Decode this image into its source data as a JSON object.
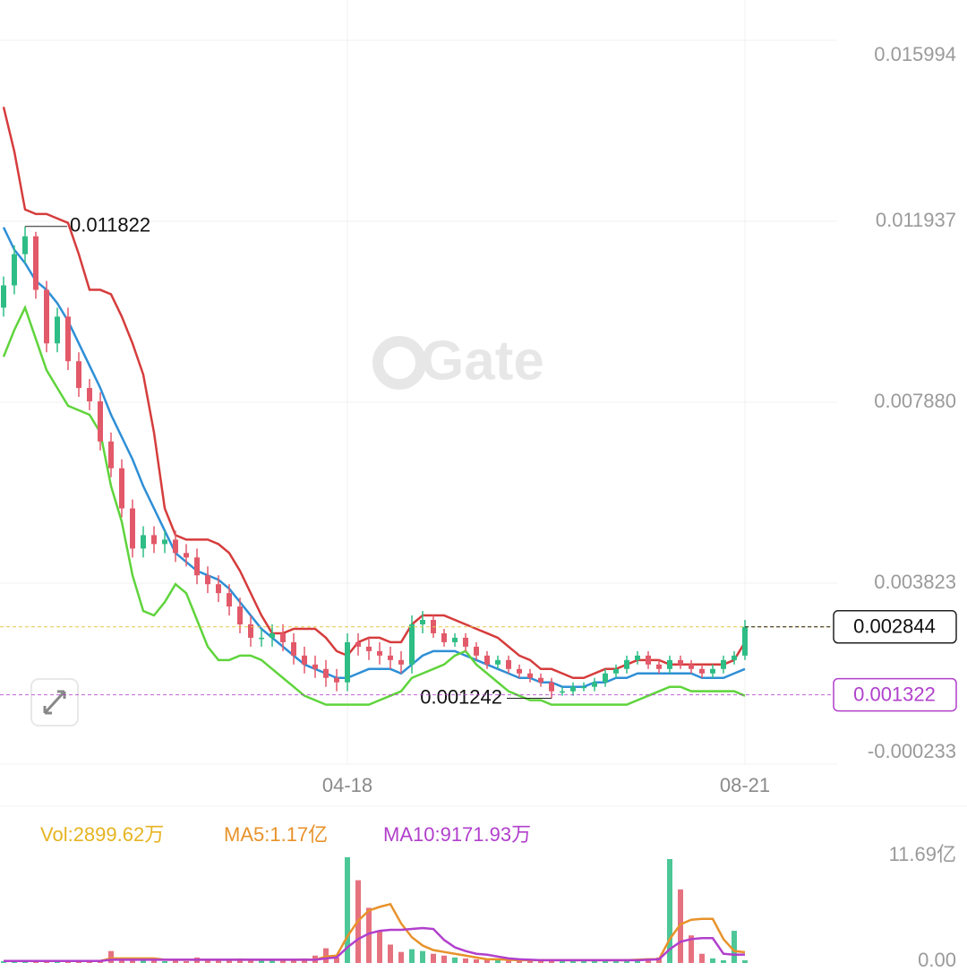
{
  "chart_data": {
    "type": "candlestick",
    "watermark": "Gate",
    "ylim": [
      -0.000233,
      0.015994
    ],
    "yticks": [
      0.015994,
      0.011937,
      {
        "value": 0.00788,
        "label": "0.007880"
      },
      0.003823,
      -0.000233
    ],
    "xticks": [
      {
        "value": 32,
        "label": "04-18"
      },
      {
        "value": 69,
        "label": "08-21"
      }
    ],
    "grid": true,
    "colors": {
      "up": "#2ebd85",
      "down": "#e2596a"
    },
    "candles": {
      "open": [
        0.01,
        0.0105,
        0.0112,
        0.0116,
        0.0104,
        0.0092,
        0.0098,
        0.0088,
        0.0082,
        0.0079,
        0.007,
        0.0064,
        0.0055,
        0.0046,
        0.0049,
        0.0047,
        0.0048,
        0.0045,
        0.0044,
        0.004,
        0.0038,
        0.0036,
        0.0033,
        0.0029,
        0.0026,
        0.0026,
        0.0027,
        0.0025,
        0.0022,
        0.002,
        0.0019,
        0.0017,
        0.0016,
        0.0025,
        0.0024,
        0.0023,
        0.0022,
        0.0021,
        0.002,
        0.0029,
        0.003,
        0.0027,
        0.0025,
        0.0026,
        0.0024,
        0.0022,
        0.002,
        0.0021,
        0.0019,
        0.0018,
        0.0017,
        0.0016,
        0.0014,
        0.0014,
        0.0015,
        0.0015,
        0.0016,
        0.0018,
        0.0019,
        0.0021,
        0.0022,
        0.002,
        0.0019,
        0.0021,
        0.002,
        0.0019,
        0.0018,
        0.0019,
        0.0021,
        0.0022
      ],
      "high": [
        0.0107,
        0.0114,
        0.011822,
        0.0117,
        0.0106,
        0.01,
        0.01,
        0.009,
        0.0084,
        0.0081,
        0.0072,
        0.0066,
        0.0057,
        0.0051,
        0.0051,
        0.005,
        0.005,
        0.0047,
        0.0046,
        0.0042,
        0.004,
        0.0038,
        0.0035,
        0.0031,
        0.0028,
        0.0029,
        0.0029,
        0.0027,
        0.0024,
        0.0022,
        0.0021,
        0.0019,
        0.0027,
        0.0027,
        0.0026,
        0.0025,
        0.0024,
        0.0023,
        0.0031,
        0.0032,
        0.0031,
        0.0028,
        0.0027,
        0.0027,
        0.0025,
        0.0023,
        0.0022,
        0.0022,
        0.002,
        0.0019,
        0.0018,
        0.0017,
        0.0015,
        0.0016,
        0.0016,
        0.0017,
        0.0019,
        0.002,
        0.0022,
        0.0023,
        0.0023,
        0.0021,
        0.0022,
        0.0022,
        0.0021,
        0.002,
        0.002,
        0.0022,
        0.0023,
        0.003
      ],
      "low": [
        0.0098,
        0.0103,
        0.011,
        0.0102,
        0.009,
        0.009,
        0.0086,
        0.008,
        0.0077,
        0.0068,
        0.0062,
        0.0053,
        0.0044,
        0.0044,
        0.0045,
        0.0045,
        0.0043,
        0.0042,
        0.0038,
        0.0036,
        0.0034,
        0.0031,
        0.0027,
        0.0024,
        0.0024,
        0.0024,
        0.0023,
        0.002,
        0.0018,
        0.0017,
        0.0015,
        0.0014,
        0.0014,
        0.0022,
        0.0021,
        0.002,
        0.0019,
        0.0018,
        0.0018,
        0.0027,
        0.0026,
        0.0024,
        0.0024,
        0.0023,
        0.0021,
        0.0019,
        0.0019,
        0.0018,
        0.0017,
        0.0016,
        0.0015,
        0.001242,
        0.0013,
        0.0013,
        0.0014,
        0.0014,
        0.0015,
        0.0017,
        0.0018,
        0.002,
        0.0019,
        0.0018,
        0.0018,
        0.0019,
        0.0018,
        0.0017,
        0.0017,
        0.0018,
        0.002,
        0.0021
      ],
      "close": [
        0.0105,
        0.0112,
        0.0116,
        0.0104,
        0.0092,
        0.0098,
        0.0088,
        0.0082,
        0.0079,
        0.007,
        0.0064,
        0.0055,
        0.0046,
        0.0049,
        0.0047,
        0.0048,
        0.0045,
        0.0044,
        0.004,
        0.0038,
        0.0036,
        0.0033,
        0.0029,
        0.0026,
        0.0026,
        0.0027,
        0.0025,
        0.0022,
        0.002,
        0.0019,
        0.0017,
        0.0016,
        0.0025,
        0.0024,
        0.0023,
        0.0022,
        0.0021,
        0.002,
        0.0029,
        0.003,
        0.0027,
        0.0025,
        0.0026,
        0.0024,
        0.0022,
        0.002,
        0.0021,
        0.0019,
        0.0018,
        0.0017,
        0.0016,
        0.0014,
        0.0014,
        0.0015,
        0.0015,
        0.0016,
        0.0018,
        0.0019,
        0.0021,
        0.0022,
        0.002,
        0.0019,
        0.0021,
        0.002,
        0.0019,
        0.0018,
        0.0019,
        0.0021,
        0.0022,
        0.002844
      ]
    },
    "bands": [
      {
        "color": "#d63c3c",
        "values": [
          0.0145,
          0.0135,
          0.0122,
          0.0121,
          0.0121,
          0.012,
          0.0119,
          0.0112,
          0.0104,
          0.0104,
          0.0103,
          0.0098,
          0.0092,
          0.0085,
          0.0072,
          0.0055,
          0.0049,
          0.0048,
          0.0048,
          0.0048,
          0.0047,
          0.0045,
          0.0041,
          0.0036,
          0.0031,
          0.0027,
          0.0027,
          0.0028,
          0.0028,
          0.0028,
          0.0026,
          0.0023,
          0.0022,
          0.0025,
          0.0026,
          0.0026,
          0.0025,
          0.0025,
          0.0029,
          0.0031,
          0.0031,
          0.0031,
          0.003,
          0.0029,
          0.0028,
          0.0027,
          0.0026,
          0.0024,
          0.0022,
          0.0021,
          0.0019,
          0.0019,
          0.0018,
          0.0017,
          0.0017,
          0.0018,
          0.0019,
          0.0019,
          0.002,
          0.0021,
          0.0021,
          0.0021,
          0.002,
          0.002,
          0.002,
          0.002,
          0.002,
          0.002,
          0.0021,
          0.0025
        ]
      },
      {
        "color": "#2e8fd6",
        "values": [
          0.0118,
          0.0113,
          0.011,
          0.0106,
          0.0104,
          0.0101,
          0.0097,
          0.0092,
          0.0087,
          0.0082,
          0.0076,
          0.0071,
          0.0066,
          0.006,
          0.0055,
          0.005,
          0.0045,
          0.0043,
          0.0041,
          0.004,
          0.0039,
          0.0037,
          0.0034,
          0.0031,
          0.0028,
          0.0026,
          0.0024,
          0.0022,
          0.002,
          0.0019,
          0.0018,
          0.0017,
          0.0017,
          0.0018,
          0.0019,
          0.0019,
          0.0019,
          0.0018,
          0.002,
          0.0022,
          0.0023,
          0.0023,
          0.0023,
          0.0022,
          0.0021,
          0.002,
          0.0019,
          0.0018,
          0.0017,
          0.0017,
          0.0016,
          0.0016,
          0.0015,
          0.0015,
          0.0015,
          0.0016,
          0.0016,
          0.0017,
          0.0017,
          0.0018,
          0.0018,
          0.0018,
          0.0018,
          0.0018,
          0.0018,
          0.0017,
          0.0017,
          0.0017,
          0.0018,
          0.0019
        ]
      },
      {
        "color": "#5fd43c",
        "values": [
          0.0089,
          0.0095,
          0.01,
          0.0093,
          0.0086,
          0.0082,
          0.0078,
          0.0077,
          0.0076,
          0.0072,
          0.006,
          0.0052,
          0.004,
          0.0032,
          0.0031,
          0.0034,
          0.0038,
          0.0036,
          0.003,
          0.0024,
          0.0021,
          0.0021,
          0.0022,
          0.0022,
          0.0021,
          0.0019,
          0.0017,
          0.0015,
          0.0013,
          0.0012,
          0.0011,
          0.0011,
          0.0011,
          0.0011,
          0.0011,
          0.0012,
          0.0013,
          0.0014,
          0.0017,
          0.0018,
          0.0019,
          0.002,
          0.0022,
          0.0023,
          0.002,
          0.0018,
          0.0016,
          0.0014,
          0.0013,
          0.0012,
          0.0012,
          0.0011,
          0.0011,
          0.0011,
          0.0011,
          0.0011,
          0.0011,
          0.0011,
          0.0011,
          0.0012,
          0.0013,
          0.0014,
          0.0015,
          0.0015,
          0.0014,
          0.0014,
          0.0014,
          0.0014,
          0.0014,
          0.0013
        ]
      }
    ],
    "price_line": {
      "value": 0.001322,
      "color": "#b13fcc"
    },
    "volume": {
      "ylim": [
        0,
        11.69
      ],
      "yticks": [
        {
          "value": 11.69,
          "label": "11.69亿"
        },
        {
          "value": 0,
          "label": "0.00"
        }
      ],
      "series": [
        {
          "name": "Vol:2899.62万",
          "color": "#e6b422",
          "values": [
            0.2,
            0.2,
            0.3,
            0.2,
            0.2,
            0.3,
            0.2,
            0.2,
            0.2,
            0.3,
            1.3,
            0.4,
            0.3,
            0.5,
            0.3,
            0.2,
            0.3,
            0.2,
            0.6,
            0.4,
            0.3,
            0.3,
            0.5,
            0.4,
            0.3,
            0.3,
            0.4,
            0.3,
            0.5,
            0.8,
            1.6,
            0.6,
            11.5,
            9.0,
            6.0,
            3.5,
            2.0,
            1.2,
            1.5,
            1.3,
            1.0,
            0.8,
            0.6,
            0.5,
            0.4,
            0.4,
            0.3,
            0.3,
            0.3,
            0.3,
            0.2,
            0.3,
            0.2,
            0.2,
            0.2,
            0.2,
            0.3,
            0.3,
            0.3,
            0.4,
            0.5,
            0.6,
            11.3,
            8.0,
            3.0,
            1.0,
            0.5,
            0.3,
            3.5,
            0.289962
          ]
        },
        {
          "name": "MA5:1.17亿",
          "color": "#e8922a",
          "values": [
            0.22,
            0.22,
            0.22,
            0.22,
            0.22,
            0.22,
            0.22,
            0.22,
            0.22,
            0.22,
            0.5,
            0.5,
            0.5,
            0.5,
            0.5,
            0.35,
            0.35,
            0.35,
            0.35,
            0.35,
            0.35,
            0.35,
            0.35,
            0.35,
            0.35,
            0.35,
            0.35,
            0.35,
            0.35,
            0.35,
            0.7,
            0.8,
            2.9,
            4.6,
            5.7,
            6.1,
            6.4,
            4.3,
            2.8,
            1.9,
            1.4,
            1.2,
            1.0,
            0.8,
            0.6,
            0.4,
            0.4,
            0.35,
            0.3,
            0.3,
            0.3,
            0.3,
            0.3,
            0.3,
            0.3,
            0.3,
            0.3,
            0.3,
            0.3,
            0.35,
            0.4,
            0.4,
            2.6,
            4.2,
            4.7,
            4.8,
            4.8,
            2.6,
            1.3,
            1.17
          ]
        },
        {
          "name": "MA10:9171.93万",
          "color": "#b13fcc",
          "values": [
            0.22,
            0.22,
            0.22,
            0.22,
            0.22,
            0.22,
            0.22,
            0.22,
            0.22,
            0.22,
            0.35,
            0.35,
            0.35,
            0.35,
            0.35,
            0.35,
            0.35,
            0.35,
            0.35,
            0.35,
            0.35,
            0.35,
            0.35,
            0.35,
            0.35,
            0.35,
            0.35,
            0.35,
            0.35,
            0.35,
            0.5,
            0.6,
            1.7,
            2.6,
            3.2,
            3.5,
            3.6,
            3.6,
            3.7,
            3.8,
            3.7,
            2.5,
            1.7,
            1.3,
            1.0,
            0.9,
            0.7,
            0.5,
            0.4,
            0.35,
            0.3,
            0.3,
            0.3,
            0.3,
            0.3,
            0.3,
            0.3,
            0.3,
            0.3,
            0.3,
            0.35,
            0.4,
            1.5,
            2.3,
            2.6,
            2.7,
            2.7,
            1.0,
            0.9,
            0.917193
          ]
        }
      ]
    }
  }
}
